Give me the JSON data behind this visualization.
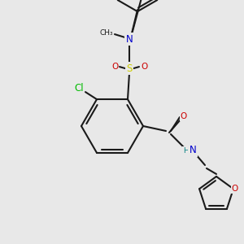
{
  "bg_color": "#e8e8e8",
  "bond_color": "#1a1a1a",
  "bond_lw": 1.5,
  "colors": {
    "C": "#1a1a1a",
    "N": "#0000cc",
    "O": "#cc0000",
    "S": "#cccc00",
    "Cl": "#00bb00",
    "H": "#008080"
  },
  "font_size": 7.5
}
